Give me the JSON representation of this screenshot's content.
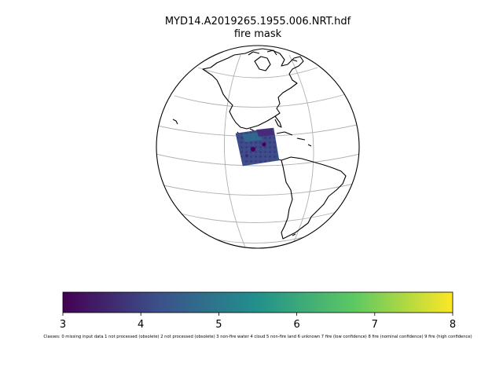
{
  "figure": {
    "title": "MYD14.A2019265.1955.006.NRT.hdf",
    "subtitle": "fire mask"
  },
  "map": {
    "projection": "orthographic",
    "graticule": true,
    "coastlines": true,
    "colors": {
      "coastline": "#000000",
      "graticule": "#b0b0b0",
      "background": "#ffffff"
    }
  },
  "colorbar": {
    "colormap": "viridis",
    "min": 3,
    "max": 8,
    "ticks": [
      "3",
      "4",
      "5",
      "6",
      "7",
      "8"
    ],
    "caption": "Classes: 0 missing input data 1 not processed (obsolete) 2 not processed (obsolete) 3 non-fire water 4 cloud 5 non-fire land 6 unknown 7 fire (low confidence) 8 fire (nominal confidence) 9 fire (high confidence)",
    "colors": [
      "#440154",
      "#3b528b",
      "#21918c",
      "#5ec962",
      "#fde725"
    ]
  }
}
